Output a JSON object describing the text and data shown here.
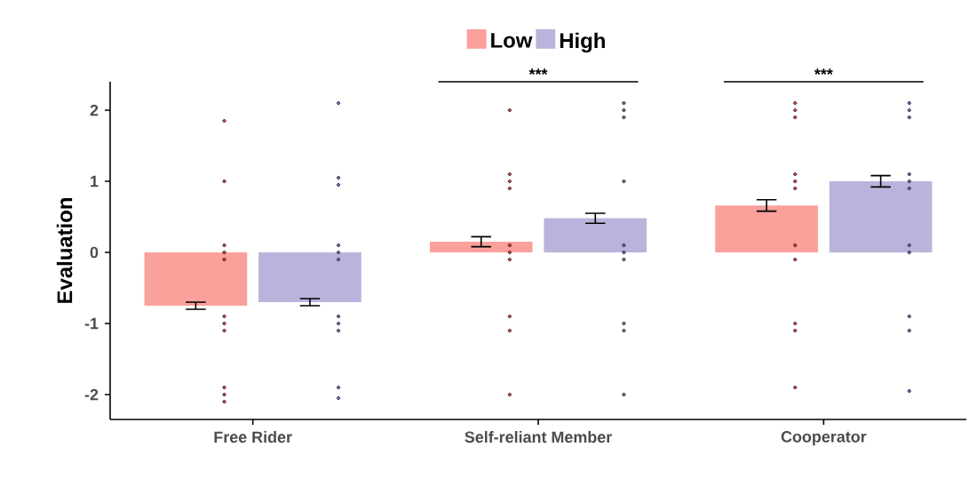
{
  "chart_data": {
    "type": "bar",
    "ylabel": "Evaluation",
    "categories": [
      "Free Rider",
      "Self-reliant Member",
      "Cooperator"
    ],
    "series": [
      {
        "name": "Low",
        "color": "#f9a19a",
        "values": [
          -0.75,
          0.15,
          0.66
        ],
        "errors": [
          0.05,
          0.07,
          0.08
        ]
      },
      {
        "name": "High",
        "color": "#b9b4dc",
        "values": [
          -0.7,
          0.48,
          1.0
        ],
        "errors": [
          0.05,
          0.07,
          0.08
        ]
      },
      {
        "type": "scatter",
        "color": "#f0463c",
        "x": [
          "Free Rider",
          "Free Rider",
          "Free Rider",
          "Free Rider",
          "Free Rider",
          "Free Rider",
          "Free Rider",
          "Free Rider",
          "Free Rider",
          "Free Rider",
          "Free Rider",
          "Self-reliant Member",
          "Self-reliant Member",
          "Self-reliant Member",
          "Self-reliant Member",
          "Self-reliant Member",
          "Self-reliant Member",
          "Self-reliant Member",
          "Self-reliant Member",
          "Self-reliant Member",
          "Self-reliant Member",
          "Cooperator",
          "Cooperator",
          "Cooperator",
          "Cooperator",
          "Cooperator",
          "Cooperator",
          "Cooperator",
          "Cooperator",
          "Cooperator",
          "Cooperator",
          "Cooperator"
        ],
        "values": [
          1.85,
          1.0,
          0.1,
          0.0,
          -0.1,
          -0.9,
          -1.0,
          -1.1,
          -1.9,
          -2.0,
          -2.1,
          2.0,
          1.1,
          1.0,
          0.9,
          0.1,
          0.0,
          -0.1,
          -0.9,
          -1.1,
          -2.0,
          2.1,
          2.0,
          1.9,
          1.1,
          1.0,
          0.9,
          0.1,
          -0.1,
          -1.0,
          -1.1,
          -1.9
        ]
      },
      {
        "type": "scatter",
        "color": "#7c71bf",
        "x": [
          "Free Rider",
          "Free Rider",
          "Free Rider",
          "Free Rider",
          "Free Rider",
          "Free Rider",
          "Free Rider",
          "Free Rider",
          "Free Rider",
          "Free Rider",
          "Free Rider",
          "Self-reliant Member",
          "Self-reliant Member",
          "Self-reliant Member",
          "Self-reliant Member",
          "Self-reliant Member",
          "Self-reliant Member",
          "Self-reliant Member",
          "Self-reliant Member",
          "Self-reliant Member",
          "Self-reliant Member",
          "Cooperator",
          "Cooperator",
          "Cooperator",
          "Cooperator",
          "Cooperator",
          "Cooperator",
          "Cooperator",
          "Cooperator",
          "Cooperator",
          "Cooperator",
          "Cooperator"
        ],
        "values": [
          2.1,
          1.05,
          0.95,
          0.1,
          0.0,
          -0.1,
          -0.9,
          -1.0,
          -1.1,
          -1.9,
          -2.05,
          2.1,
          2.0,
          1.9,
          1.0,
          0.1,
          0.0,
          -0.1,
          -1.0,
          -1.1,
          -2.0,
          2.1,
          2.0,
          1.9,
          1.1,
          1.0,
          0.9,
          0.1,
          0.0,
          -0.9,
          -1.1,
          -1.95
        ]
      }
    ],
    "ylim": [
      -2.35,
      2.4
    ],
    "yticks": [
      -2,
      -1,
      0,
      1,
      2
    ],
    "annotations": [
      "***",
      "***"
    ],
    "legend": "top",
    "grid": false
  }
}
